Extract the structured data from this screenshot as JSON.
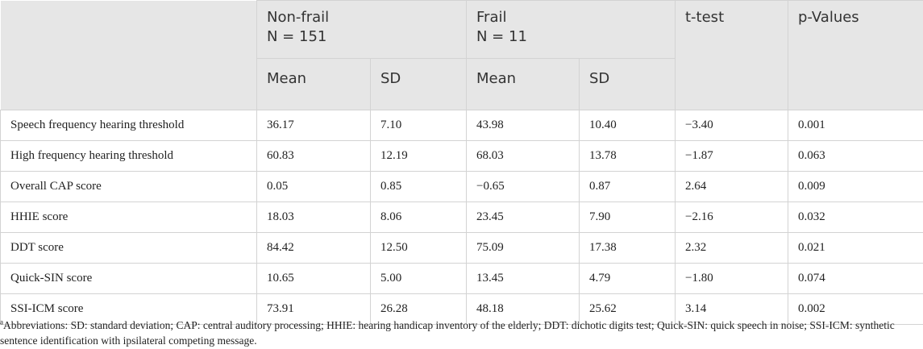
{
  "header": {
    "group1_line1": "Non-frail",
    "group1_line2": "N = 151",
    "group2_line1": "Frail",
    "group2_line2": "N = 11",
    "ttest": "t-test",
    "pvalues": "p-Values",
    "mean1": "Mean",
    "sd1": "SD",
    "mean2": "Mean",
    "sd2": "SD"
  },
  "rows": [
    [
      "Speech frequency hearing threshold",
      "36.17",
      "7.10",
      "43.98",
      "10.40",
      "−3.40",
      "0.001"
    ],
    [
      "High frequency hearing threshold",
      "60.83",
      "12.19",
      "68.03",
      "13.78",
      "−1.87",
      "0.063"
    ],
    [
      "Overall CAP score",
      "0.05",
      "0.85",
      "−0.65",
      "0.87",
      "2.64",
      "0.009"
    ],
    [
      "HHIE score",
      "18.03",
      "8.06",
      "23.45",
      "7.90",
      "−2.16",
      "0.032"
    ],
    [
      "DDT score",
      "84.42",
      "12.50",
      "75.09",
      "17.38",
      "2.32",
      "0.021"
    ],
    [
      "Quick-SIN score",
      "10.65",
      "5.00",
      "13.45",
      "4.79",
      "−1.80",
      "0.074"
    ],
    [
      "SSI-ICM score",
      "73.91",
      "26.28",
      "48.18",
      "25.62",
      "3.14",
      "0.002"
    ]
  ],
  "footnote": {
    "marker": "a",
    "text": "Abbreviations: SD: standard deviation; CAP: central auditory processing; HHIE: hearing handicap inventory of the elderly; DDT: dichotic digits test; Quick-SIN: quick speech in noise; SSI-ICM: synthetic sentence identification with ipsilateral competing message."
  }
}
